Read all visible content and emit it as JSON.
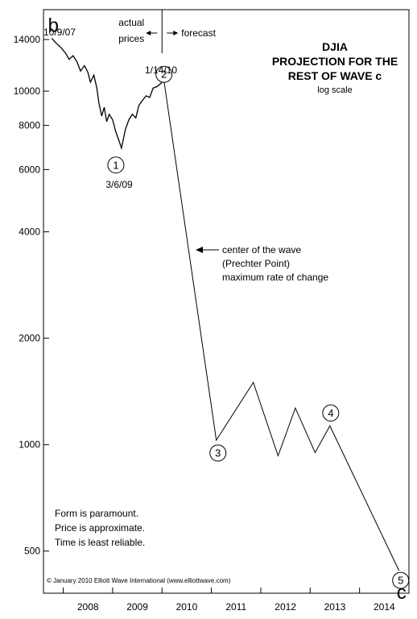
{
  "chart_data": {
    "type": "line",
    "title_lines": [
      "DJIA",
      "PROJECTION FOR THE",
      "REST OF WAVE c"
    ],
    "subtitle": "log scale",
    "y_scale": "log",
    "ylim": [
      380,
      17000
    ],
    "xlim": [
      2007.6,
      2015.0
    ],
    "y_ticks": [
      14000,
      10000,
      8000,
      6000,
      4000,
      2000,
      1000,
      500
    ],
    "y_tick_labels": [
      "14000",
      "10000",
      "8000",
      "6000",
      "4000",
      "2000",
      "1000",
      "500"
    ],
    "x_tick_positions": [
      2008,
      2009,
      2010,
      2011,
      2012,
      2013,
      2014,
      2015
    ],
    "x_labels": [
      {
        "label": "2008",
        "x": 2008.5
      },
      {
        "label": "2009",
        "x": 2009.5
      },
      {
        "label": "2010",
        "x": 2010.5
      },
      {
        "label": "2011",
        "x": 2011.5
      },
      {
        "label": "2012",
        "x": 2012.5
      },
      {
        "label": "2013",
        "x": 2013.5
      },
      {
        "label": "2014",
        "x": 2014.5
      }
    ],
    "series": [
      {
        "kind": "actual",
        "points": [
          [
            2007.77,
            14100
          ],
          [
            2007.85,
            13700
          ],
          [
            2007.95,
            13300
          ],
          [
            2008.05,
            12800
          ],
          [
            2008.12,
            12300
          ],
          [
            2008.2,
            12600
          ],
          [
            2008.28,
            12100
          ],
          [
            2008.35,
            11400
          ],
          [
            2008.43,
            11800
          ],
          [
            2008.5,
            11300
          ],
          [
            2008.55,
            10600
          ],
          [
            2008.62,
            11100
          ],
          [
            2008.68,
            10200
          ],
          [
            2008.72,
            9300
          ],
          [
            2008.78,
            8500
          ],
          [
            2008.83,
            9000
          ],
          [
            2008.88,
            8200
          ],
          [
            2008.93,
            8600
          ],
          [
            2009.0,
            8300
          ],
          [
            2009.06,
            7700
          ],
          [
            2009.12,
            7300
          ],
          [
            2009.18,
            6900
          ],
          [
            2009.26,
            7800
          ],
          [
            2009.33,
            8300
          ],
          [
            2009.4,
            8600
          ],
          [
            2009.47,
            8400
          ],
          [
            2009.53,
            9100
          ],
          [
            2009.6,
            9400
          ],
          [
            2009.68,
            9700
          ],
          [
            2009.75,
            9600
          ],
          [
            2009.82,
            10200
          ],
          [
            2009.9,
            10300
          ],
          [
            2009.97,
            10500
          ],
          [
            2010.04,
            10700
          ]
        ]
      },
      {
        "kind": "forecast",
        "points": [
          [
            2010.04,
            10700
          ],
          [
            2011.1,
            1030
          ],
          [
            2011.85,
            1500
          ],
          [
            2012.35,
            930
          ],
          [
            2012.7,
            1270
          ],
          [
            2013.1,
            950
          ],
          [
            2013.4,
            1130
          ],
          [
            2014.8,
            440
          ]
        ]
      }
    ],
    "divider_x": 2010.0,
    "divider_labels": {
      "left": "actual\nprices",
      "right": "forecast"
    },
    "wave_labels": [
      {
        "text": "b",
        "style": "letter",
        "x": 2007.8,
        "y": 14100
      },
      {
        "text": "1",
        "style": "circle",
        "x": 2009.18,
        "y": 6900
      },
      {
        "text": "2",
        "style": "circle",
        "x": 2010.04,
        "y": 10700
      },
      {
        "text": "3",
        "style": "circle",
        "x": 2011.1,
        "y": 1030
      },
      {
        "text": "4",
        "style": "circle",
        "x": 2013.4,
        "y": 1130
      },
      {
        "text": "5",
        "style": "circle",
        "x": 2014.8,
        "y": 440
      },
      {
        "text": "c",
        "style": "letter",
        "x": 2014.8,
        "y": 440
      }
    ],
    "date_annotations": [
      {
        "text": "10/9/07"
      },
      {
        "text": "1/14/10"
      },
      {
        "text": "3/6/09"
      }
    ],
    "arrow_annotation": {
      "text_lines": [
        "center of the wave",
        "(Prechter Point)",
        "maximum rate of change"
      ]
    },
    "notes": [
      "Form is paramount.",
      "Price is approximate.",
      "Time is least reliable."
    ],
    "copyright": "© January 2010 Elliott Wave International (www.elliottwave.com)"
  }
}
